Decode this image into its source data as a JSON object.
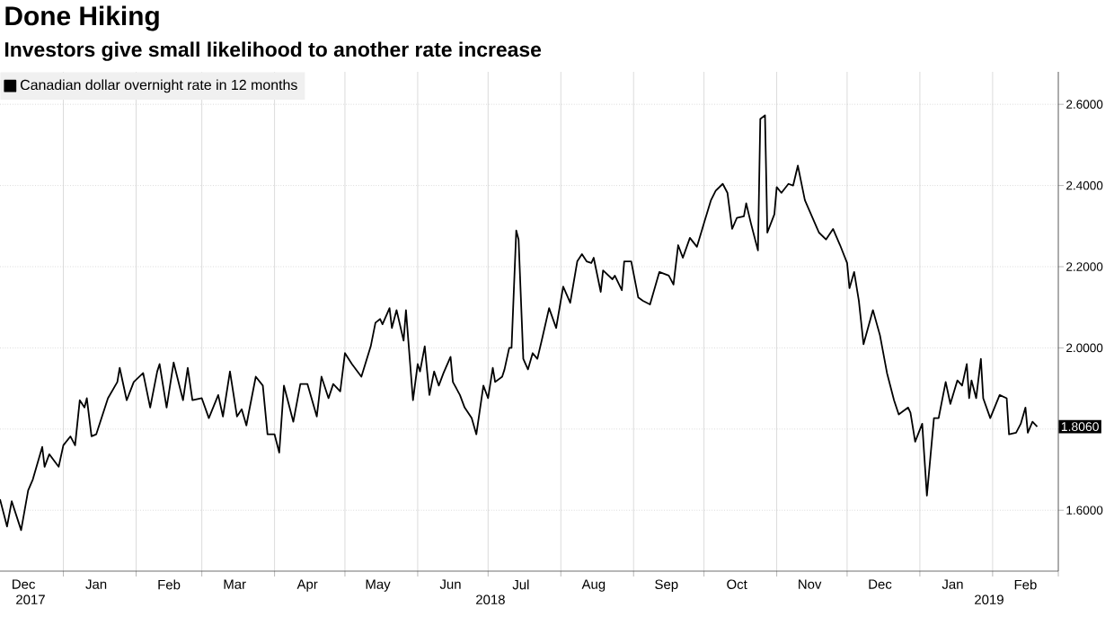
{
  "chart_data": {
    "type": "line",
    "title": "Done Hiking",
    "subtitle": "Investors give small likelihood to another rate increase",
    "x": [
      "2017-12-05",
      "2017-12-08",
      "2017-12-10",
      "2017-12-14",
      "2017-12-17",
      "2017-12-19",
      "2017-12-23",
      "2017-12-24",
      "2017-12-26",
      "2017-12-30",
      "2018-01-01",
      "2018-01-04",
      "2018-01-06",
      "2018-01-08",
      "2018-01-10",
      "2018-01-11",
      "2018-01-13",
      "2018-01-15",
      "2018-01-20",
      "2018-01-24",
      "2018-01-25",
      "2018-01-28",
      "2018-01-31",
      "2018-02-04",
      "2018-02-07",
      "2018-02-10",
      "2018-02-11",
      "2018-02-14",
      "2018-02-17",
      "2018-02-21",
      "2018-02-23",
      "2018-02-25",
      "2018-03-01",
      "2018-03-04",
      "2018-03-08",
      "2018-03-10",
      "2018-03-13",
      "2018-03-16",
      "2018-03-18",
      "2018-03-20",
      "2018-03-21",
      "2018-03-24",
      "2018-03-27",
      "2018-03-29",
      "2018-04-01",
      "2018-04-03",
      "2018-04-05",
      "2018-04-09",
      "2018-04-12",
      "2018-04-15",
      "2018-04-19",
      "2018-04-21",
      "2018-04-24",
      "2018-04-26",
      "2018-04-29",
      "2018-05-01",
      "2018-05-04",
      "2018-05-08",
      "2018-05-12",
      "2018-05-14",
      "2018-05-16",
      "2018-05-17",
      "2018-05-20",
      "2018-05-21",
      "2018-05-23",
      "2018-05-26",
      "2018-05-27",
      "2018-05-30",
      "2018-06-01",
      "2018-06-02",
      "2018-06-04",
      "2018-06-06",
      "2018-06-08",
      "2018-06-10",
      "2018-06-12",
      "2018-06-15",
      "2018-06-16",
      "2018-06-19",
      "2018-06-21",
      "2018-06-24",
      "2018-06-26",
      "2018-06-29",
      "2018-07-01",
      "2018-07-03",
      "2018-07-04",
      "2018-07-07",
      "2018-07-08",
      "2018-07-10",
      "2018-07-11",
      "2018-07-13",
      "2018-07-14",
      "2018-07-16",
      "2018-07-18",
      "2018-07-20",
      "2018-07-22",
      "2018-07-24",
      "2018-07-27",
      "2018-07-30",
      "2018-08-02",
      "2018-08-05",
      "2018-08-08",
      "2018-08-10",
      "2018-08-12",
      "2018-08-14",
      "2018-08-15",
      "2018-08-18",
      "2018-08-19",
      "2018-08-23",
      "2018-08-24",
      "2018-08-27",
      "2018-08-28",
      "2018-08-31",
      "2018-09-03",
      "2018-09-05",
      "2018-09-08",
      "2018-09-12",
      "2018-09-16",
      "2018-09-18",
      "2018-09-20",
      "2018-09-22",
      "2018-09-25",
      "2018-09-28",
      "2018-10-01",
      "2018-10-04",
      "2018-10-06",
      "2018-10-09",
      "2018-10-11",
      "2018-10-13",
      "2018-10-15",
      "2018-10-18",
      "2018-10-19",
      "2018-10-21",
      "2018-10-24",
      "2018-10-25",
      "2018-10-27",
      "2018-10-28",
      "2018-10-31",
      "2018-11-01",
      "2018-11-03",
      "2018-11-06",
      "2018-11-08",
      "2018-11-10",
      "2018-11-13",
      "2018-11-19",
      "2018-11-22",
      "2018-11-25",
      "2018-11-28",
      "2018-12-01",
      "2018-12-02",
      "2018-12-04",
      "2018-12-06",
      "2018-12-08",
      "2018-12-12",
      "2018-12-15",
      "2018-12-18",
      "2018-12-21",
      "2018-12-23",
      "2018-12-27",
      "2018-12-28",
      "2018-12-30",
      "2019-01-02",
      "2019-01-04",
      "2019-01-07",
      "2019-01-09",
      "2019-01-12",
      "2019-01-14",
      "2019-01-17",
      "2019-01-19",
      "2019-01-21",
      "2019-01-22",
      "2019-01-23",
      "2019-01-25",
      "2019-01-27",
      "2019-01-28",
      "2019-01-31",
      "2019-02-04",
      "2019-02-07",
      "2019-02-08",
      "2019-02-11",
      "2019-02-13",
      "2019-02-15",
      "2019-02-16",
      "2019-02-18",
      "2019-02-20"
    ],
    "series": [
      {
        "name": "Canadian dollar overnight rate in 12 months",
        "color": "#000000",
        "values": [
          1.627,
          1.56,
          1.622,
          1.551,
          1.649,
          1.676,
          1.756,
          1.707,
          1.738,
          1.707,
          1.76,
          1.782,
          1.76,
          1.871,
          1.853,
          1.876,
          1.782,
          1.787,
          1.876,
          1.916,
          1.951,
          1.871,
          1.916,
          1.938,
          1.853,
          1.942,
          1.96,
          1.853,
          1.964,
          1.871,
          1.951,
          1.871,
          1.876,
          1.827,
          1.884,
          1.831,
          1.942,
          1.831,
          1.849,
          1.809,
          1.84,
          1.929,
          1.907,
          1.787,
          1.787,
          1.742,
          1.907,
          1.818,
          1.911,
          1.911,
          1.831,
          1.929,
          1.876,
          1.911,
          1.893,
          1.987,
          1.96,
          1.929,
          2.004,
          2.062,
          2.071,
          2.058,
          2.098,
          2.049,
          2.093,
          2.018,
          2.093,
          1.871,
          1.96,
          1.942,
          2.004,
          1.884,
          1.942,
          1.907,
          1.938,
          1.978,
          1.916,
          1.884,
          1.853,
          1.827,
          1.787,
          1.907,
          1.876,
          1.951,
          1.916,
          1.929,
          1.947,
          2.0,
          2.0,
          2.289,
          2.267,
          1.973,
          1.947,
          1.987,
          1.973,
          2.022,
          2.098,
          2.049,
          2.151,
          2.111,
          2.213,
          2.231,
          2.213,
          2.209,
          2.222,
          2.138,
          2.191,
          2.169,
          2.178,
          2.142,
          2.213,
          2.213,
          2.124,
          2.116,
          2.107,
          2.187,
          2.178,
          2.156,
          2.253,
          2.222,
          2.271,
          2.249,
          2.307,
          2.364,
          2.387,
          2.404,
          2.382,
          2.293,
          2.32,
          2.324,
          2.356,
          2.307,
          2.24,
          2.564,
          2.573,
          2.284,
          2.329,
          2.396,
          2.382,
          2.404,
          2.4,
          2.449,
          2.364,
          2.284,
          2.267,
          2.293,
          2.253,
          2.209,
          2.147,
          2.187,
          2.116,
          2.009,
          2.093,
          2.031,
          1.938,
          1.871,
          1.836,
          1.853,
          1.84,
          1.769,
          1.813,
          1.636,
          1.827,
          1.827,
          1.916,
          1.862,
          1.92,
          1.907,
          1.96,
          1.876,
          1.92,
          1.876,
          1.973,
          1.876,
          1.827,
          1.884,
          1.876,
          1.787,
          1.791,
          1.813,
          1.853,
          1.791,
          1.818,
          1.806
        ]
      }
    ],
    "xlim": [
      "2017-12-05",
      "2019-03-01"
    ],
    "xticks": [
      {
        "value": "2017-12-15",
        "label": "Dec"
      },
      {
        "value": "2018-01-15",
        "label": "Jan"
      },
      {
        "value": "2018-02-15",
        "label": "Feb"
      },
      {
        "value": "2018-03-15",
        "label": "Mar"
      },
      {
        "value": "2018-04-15",
        "label": "Apr"
      },
      {
        "value": "2018-05-15",
        "label": "May"
      },
      {
        "value": "2018-06-15",
        "label": "Jun"
      },
      {
        "value": "2018-07-15",
        "label": "Jul"
      },
      {
        "value": "2018-08-15",
        "label": "Aug"
      },
      {
        "value": "2018-09-15",
        "label": "Sep"
      },
      {
        "value": "2018-10-15",
        "label": "Oct"
      },
      {
        "value": "2018-11-15",
        "label": "Nov"
      },
      {
        "value": "2018-12-15",
        "label": "Dec"
      },
      {
        "value": "2019-01-15",
        "label": "Jan"
      },
      {
        "value": "2019-02-15",
        "label": "Feb"
      },
      {
        "value": "2018-01-01",
        "label": null
      },
      {
        "value": "2018-02-01",
        "label": null
      },
      {
        "value": "2018-03-01",
        "label": null
      },
      {
        "value": "2018-04-01",
        "label": null
      },
      {
        "value": "2018-05-01",
        "label": null
      },
      {
        "value": "2018-06-01",
        "label": null
      },
      {
        "value": "2018-07-01",
        "label": null
      },
      {
        "value": "2018-08-01",
        "label": null
      },
      {
        "value": "2018-09-01",
        "label": null
      },
      {
        "value": "2018-10-01",
        "label": null
      },
      {
        "value": "2018-11-01",
        "label": null
      },
      {
        "value": "2018-12-01",
        "label": null
      },
      {
        "value": "2019-01-01",
        "label": null
      },
      {
        "value": "2019-02-01",
        "label": null
      },
      {
        "value": "2019-03-01",
        "label": null
      }
    ],
    "ylim": [
      1.45,
      2.68
    ],
    "yticks": [
      {
        "value": 1.6,
        "label": "1.6000"
      },
      {
        "value": 1.8,
        "label": null
      },
      {
        "value": 2.0,
        "label": "2.0000"
      },
      {
        "value": 2.2,
        "label": "2.2000"
      },
      {
        "value": 2.4,
        "label": "2.4000"
      },
      {
        "value": 2.6,
        "label": "2.6000"
      }
    ],
    "annotations": [
      {
        "text": "1.8060",
        "x": "2019-02-20",
        "y": 1.806
      },
      "2017",
      "2018",
      "2019"
    ],
    "grid": true,
    "legend": "top left",
    "marker": "none",
    "line_style": "solid"
  }
}
